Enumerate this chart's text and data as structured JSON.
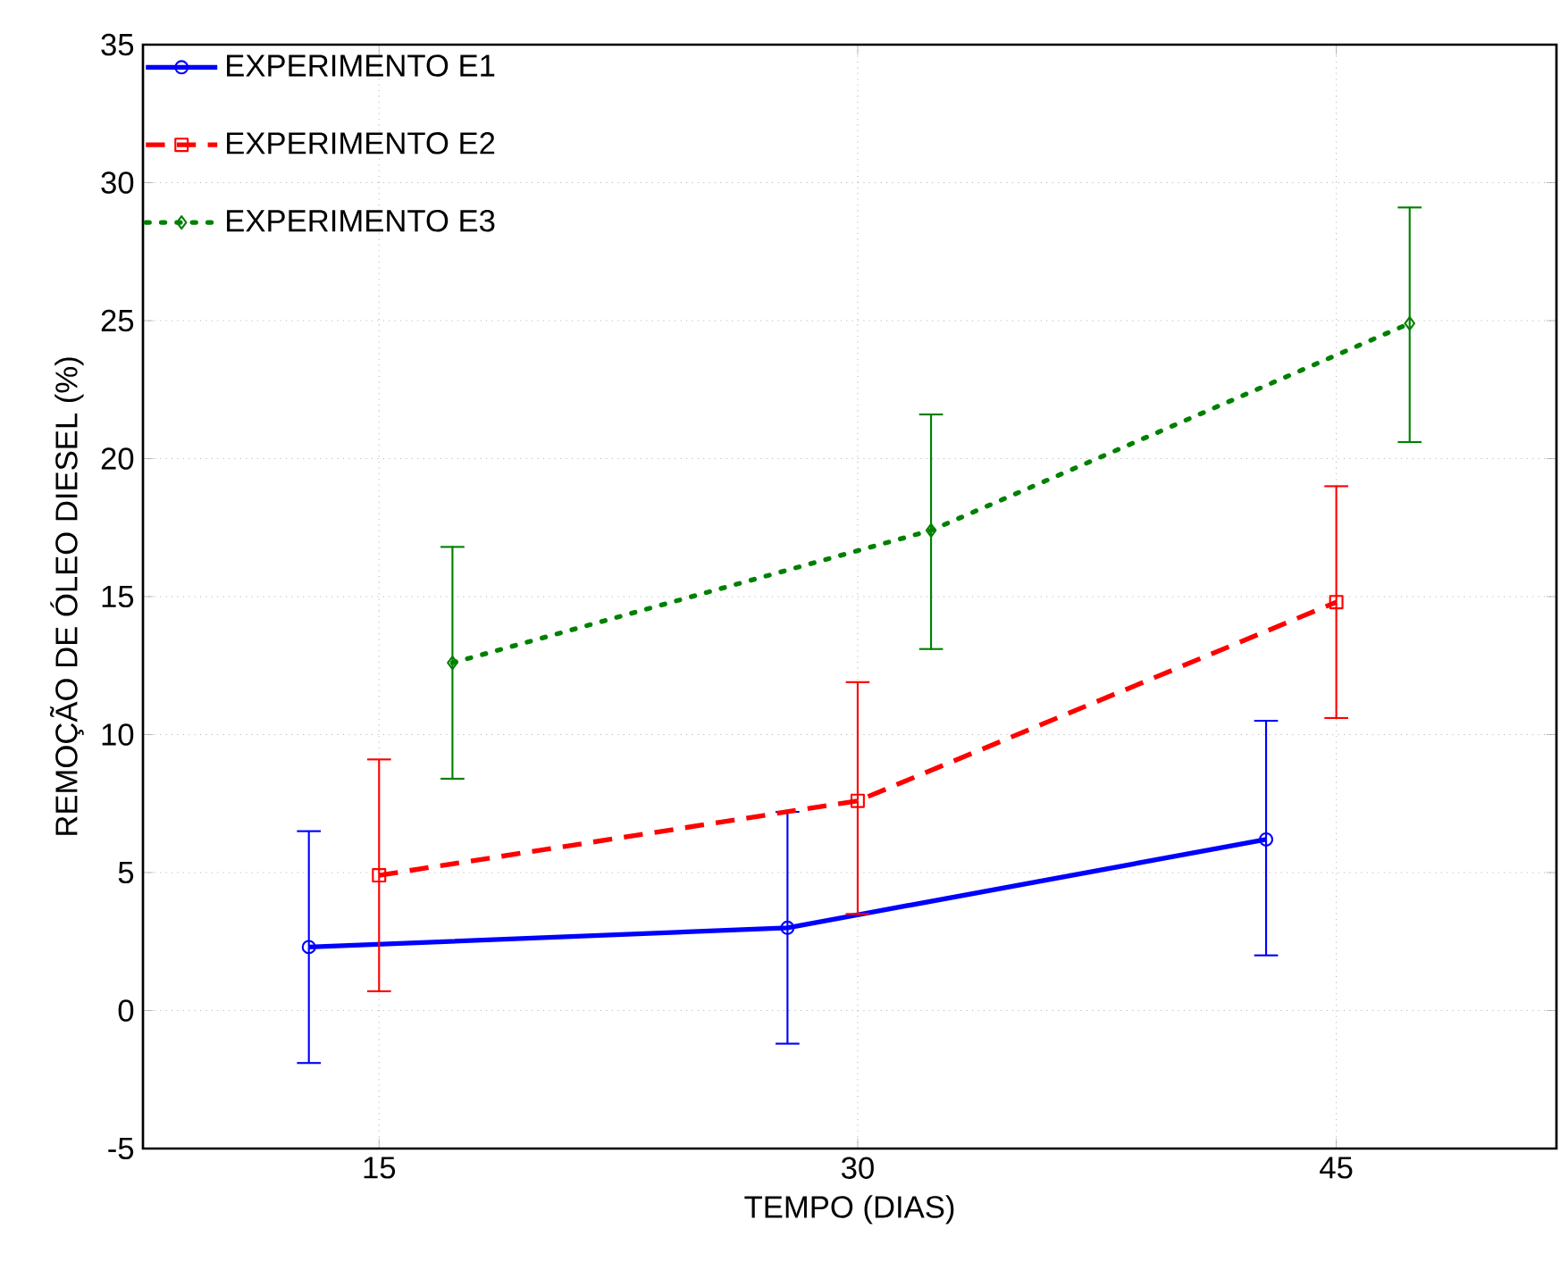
{
  "chart_data": {
    "type": "line",
    "xlabel": "TEMPO (DIAS)",
    "ylabel": "REMOÇÃO DE ÓLEO DIESEL (%)",
    "xlim": [
      7.6,
      51.9
    ],
    "xticks": [
      15,
      30,
      45
    ],
    "ylim": [
      -5,
      35
    ],
    "yticks": [
      -5,
      0,
      5,
      10,
      15,
      20,
      25,
      30,
      35
    ],
    "grid": true,
    "legend": "top left",
    "series": [
      {
        "name": "EXPERIMENTO E1",
        "color": "#0000ff",
        "marker": "circle",
        "line_style": "solid",
        "x": [
          12.8,
          27.8,
          42.8
        ],
        "values": [
          2.3,
          3.0,
          6.2
        ],
        "errors": [
          [
            -1.9,
            6.5
          ],
          [
            -1.2,
            7.2
          ],
          [
            2.0,
            10.5
          ]
        ]
      },
      {
        "name": "EXPERIMENTO E2",
        "color": "#ff0000",
        "marker": "square",
        "line_style": "dashed",
        "x": [
          15,
          30,
          45
        ],
        "values": [
          4.9,
          7.6,
          14.8
        ],
        "errors": [
          [
            0.7,
            9.1
          ],
          [
            3.5,
            11.9
          ],
          [
            10.6,
            19.0
          ]
        ]
      },
      {
        "name": "EXPERIMENTO E3",
        "color": "#008000",
        "marker": "diamond",
        "line_style": "dotted",
        "x": [
          17.3,
          32.3,
          47.3
        ],
        "values": [
          12.6,
          17.4,
          24.9
        ],
        "errors": [
          [
            8.4,
            16.8
          ],
          [
            13.1,
            21.6
          ],
          [
            20.6,
            29.1
          ]
        ]
      }
    ]
  }
}
